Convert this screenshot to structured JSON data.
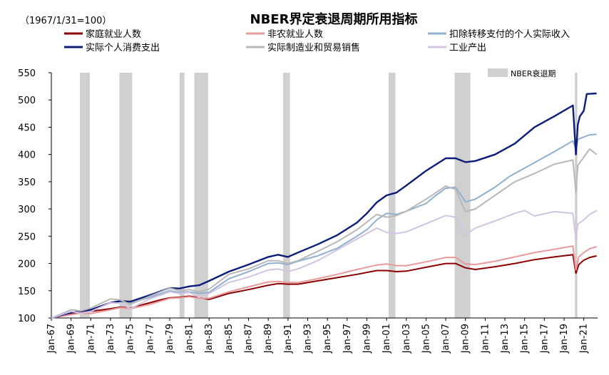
{
  "chart_data": {
    "type": "line",
    "title": "NBER界定衰退周期所用指标",
    "subtitle": "（1967/1/31=100）",
    "xlabel": "",
    "ylabel": "",
    "ylim": [
      100,
      550
    ],
    "yticks": [
      100,
      150,
      200,
      250,
      300,
      350,
      400,
      450,
      500,
      550
    ],
    "xlim": [
      1967.0,
      2022.4
    ],
    "xticks": [
      "Jan-67",
      "Jan-69",
      "Jan-71",
      "Jan-73",
      "Jan-75",
      "Jan-77",
      "Jan-79",
      "Jan-81",
      "Jan-83",
      "Jan-85",
      "Jan-87",
      "Jan-89",
      "Jan-91",
      "Jan-93",
      "Jan-95",
      "Jan-97",
      "Jan-99",
      "Jan-01",
      "Jan-03",
      "Jan-05",
      "Jan-07",
      "Jan-09",
      "Jan-11",
      "Jan-13",
      "Jan-15",
      "Jan-17",
      "Jan-19",
      "Jan-21"
    ],
    "recession_label": "NBER衰退期",
    "recession_color": "#d0d0d0",
    "recessions": [
      [
        1969.9,
        1970.9
      ],
      [
        1973.9,
        1975.2
      ],
      [
        1980.0,
        1980.5
      ],
      [
        1981.5,
        1982.9
      ],
      [
        1990.5,
        1991.2
      ],
      [
        2001.2,
        2001.9
      ],
      [
        2007.9,
        2009.5
      ],
      [
        2020.1,
        2020.35
      ]
    ],
    "legend_position": "top",
    "series": [
      {
        "name": "家庭就业人数",
        "color": "#8b0000",
        "width": 2,
        "x": [
          1967,
          1969,
          1970,
          1971,
          1973,
          1974,
          1975,
          1976,
          1978,
          1979,
          1980,
          1981,
          1982,
          1983,
          1985,
          1987,
          1989,
          1990,
          1991,
          1992,
          1994,
          1996,
          1998,
          2000,
          2001,
          2002,
          2003,
          2005,
          2007,
          2008,
          2009,
          2010,
          2012,
          2014,
          2016,
          2018,
          2019.9,
          2020.2,
          2020.5,
          2021,
          2021.6,
          2022.3
        ],
        "y": [
          100,
          107,
          110,
          112,
          117,
          120,
          118,
          123,
          133,
          137,
          138,
          140,
          137,
          134,
          145,
          152,
          160,
          163,
          162,
          162,
          168,
          174,
          180,
          187,
          187,
          185,
          186,
          193,
          200,
          200,
          192,
          189,
          194,
          200,
          207,
          212,
          216,
          182,
          198,
          206,
          211,
          214
        ]
      },
      {
        "name": "非农就业人数",
        "color": "#e89a9a",
        "width": 2,
        "x": [
          1967,
          1969,
          1970,
          1971,
          1973,
          1974,
          1975,
          1977,
          1979,
          1980,
          1981,
          1982,
          1983,
          1985,
          1987,
          1989,
          1990,
          1991,
          1992,
          1994,
          1996,
          1998,
          2000,
          2001,
          2002,
          2003,
          2005,
          2007,
          2008,
          2009,
          2010,
          2012,
          2014,
          2016,
          2018,
          2019.9,
          2020.2,
          2020.5,
          2021,
          2021.6,
          2022.3
        ],
        "y": [
          100,
          106,
          109,
          108,
          115,
          119,
          117,
          125,
          136,
          137,
          139,
          136,
          136,
          148,
          157,
          166,
          167,
          165,
          165,
          172,
          180,
          189,
          197,
          199,
          196,
          196,
          203,
          211,
          211,
          199,
          198,
          204,
          212,
          220,
          226,
          232,
          188,
          212,
          220,
          227,
          231
        ]
      },
      {
        "name": "扣除转移支付的个人实际收入",
        "color": "#8fb0cf",
        "width": 2,
        "x": [
          1967,
          1969,
          1971,
          1973,
          1974,
          1975,
          1977,
          1979,
          1980,
          1981,
          1982,
          1983,
          1985,
          1987,
          1989,
          1990,
          1991,
          1992,
          1994,
          1996,
          1998,
          1999,
          2000,
          2001,
          2002,
          2003,
          2005,
          2006,
          2007,
          2008,
          2009,
          2010,
          2012,
          2013.5,
          2014,
          2016,
          2018,
          2019.9,
          2020.2,
          2020.4,
          2021,
          2021.6,
          2022.3
        ],
        "y": [
          100,
          110,
          115,
          128,
          131,
          127,
          138,
          150,
          147,
          148,
          145,
          147,
          172,
          185,
          200,
          201,
          198,
          204,
          214,
          228,
          250,
          262,
          280,
          292,
          290,
          296,
          310,
          325,
          338,
          340,
          313,
          318,
          340,
          360,
          365,
          385,
          405,
          425,
          410,
          428,
          432,
          436,
          437
        ]
      },
      {
        "name": "实际个人消费支出",
        "color": "#0b1c7a",
        "width": 2.4,
        "x": [
          1967,
          1969,
          1971,
          1973,
          1974,
          1975,
          1977,
          1979,
          1980,
          1981,
          1982,
          1983,
          1985,
          1987,
          1989,
          1990,
          1991,
          1992,
          1994,
          1996,
          1998,
          1999,
          2000,
          2001,
          2002,
          2003,
          2005,
          2007,
          2008,
          2009,
          2010,
          2012,
          2014,
          2016,
          2018,
          2019.9,
          2020.2,
          2020.4,
          2020.6,
          2021,
          2021.3,
          2022.3
        ],
        "y": [
          100,
          110,
          115,
          128,
          131,
          130,
          142,
          155,
          154,
          158,
          160,
          168,
          185,
          198,
          212,
          216,
          212,
          220,
          235,
          252,
          275,
          292,
          312,
          325,
          330,
          343,
          370,
          393,
          393,
          386,
          388,
          400,
          420,
          450,
          470,
          490,
          400,
          455,
          470,
          480,
          511,
          512
        ]
      },
      {
        "name": "实际制造业和贸易销售",
        "color": "#b8b8b8",
        "width": 2,
        "x": [
          1967,
          1969,
          1970,
          1971,
          1973,
          1974,
          1975,
          1977,
          1979,
          1980,
          1981,
          1982,
          1983,
          1985,
          1987,
          1989,
          1990,
          1991,
          1992,
          1994,
          1996,
          1998,
          2000,
          2001,
          2002,
          2003,
          2005,
          2007,
          2008,
          2009,
          2010,
          2012,
          2014,
          2016,
          2018,
          2019.9,
          2020.2,
          2020.4,
          2021,
          2021.6,
          2022.3
        ],
        "y": [
          100,
          115,
          113,
          118,
          135,
          133,
          125,
          140,
          155,
          150,
          152,
          148,
          153,
          180,
          190,
          205,
          205,
          200,
          205,
          222,
          240,
          262,
          290,
          285,
          288,
          296,
          318,
          342,
          336,
          295,
          300,
          325,
          350,
          365,
          382,
          390,
          330,
          380,
          395,
          410,
          400
        ]
      },
      {
        "name": "工业产出",
        "color": "#d2c3e3",
        "width": 2,
        "x": [
          1967,
          1969,
          1970,
          1971,
          1973,
          1974,
          1975,
          1977,
          1979,
          1980,
          1981,
          1982,
          1983,
          1985,
          1987,
          1989,
          1990,
          1991,
          1992,
          1994,
          1996,
          1998,
          2000,
          2001,
          2002,
          2003,
          2005,
          2007,
          2008,
          2009,
          2010,
          2012,
          2014,
          2015,
          2016,
          2018,
          2019.9,
          2020.2,
          2020.4,
          2021,
          2021.6,
          2022.3
        ],
        "y": [
          100,
          112,
          109,
          112,
          128,
          127,
          117,
          135,
          148,
          145,
          147,
          138,
          145,
          165,
          175,
          188,
          190,
          185,
          190,
          205,
          225,
          245,
          265,
          257,
          255,
          258,
          273,
          288,
          285,
          252,
          265,
          278,
          292,
          297,
          287,
          295,
          292,
          245,
          272,
          280,
          290,
          297
        ]
      }
    ]
  }
}
